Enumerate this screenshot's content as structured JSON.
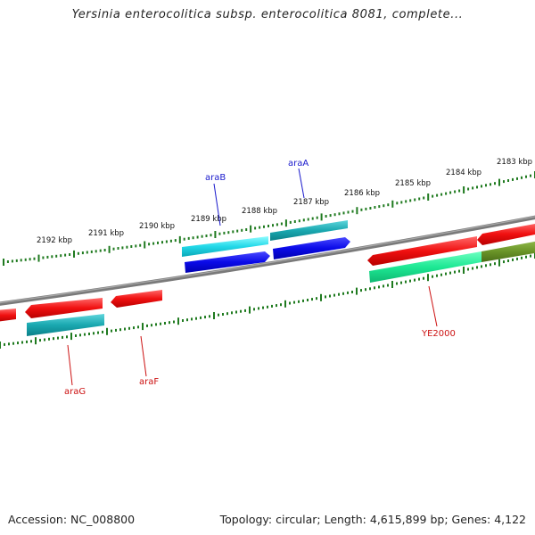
{
  "header": {
    "title": "Yersinia enterocolitica subsp. enterocolitica 8081, complete..."
  },
  "footer": {
    "accession": "Accession: NC_008800",
    "summary": "Topology: circular; Length: 4,615,899 bp; Genes: 4,122"
  },
  "colors": {
    "backbone": "#7a7a7a",
    "ruler": "#1f7a1f",
    "forward_label": "#1a1acc",
    "reverse_label": "#cc1111"
  },
  "ruler_labels": [
    "2192 kbp",
    "2191 kbp",
    "2190 kbp",
    "2189 kbp",
    "2188 kbp",
    "2187 kbp",
    "2186 kbp",
    "2185 kbp",
    "2184 kbp",
    "2183 kbp"
  ],
  "gene_labels": {
    "araB": "araB",
    "araA": "araA",
    "araG": "araG",
    "araF": "araF",
    "YE2000": "YE2000"
  }
}
